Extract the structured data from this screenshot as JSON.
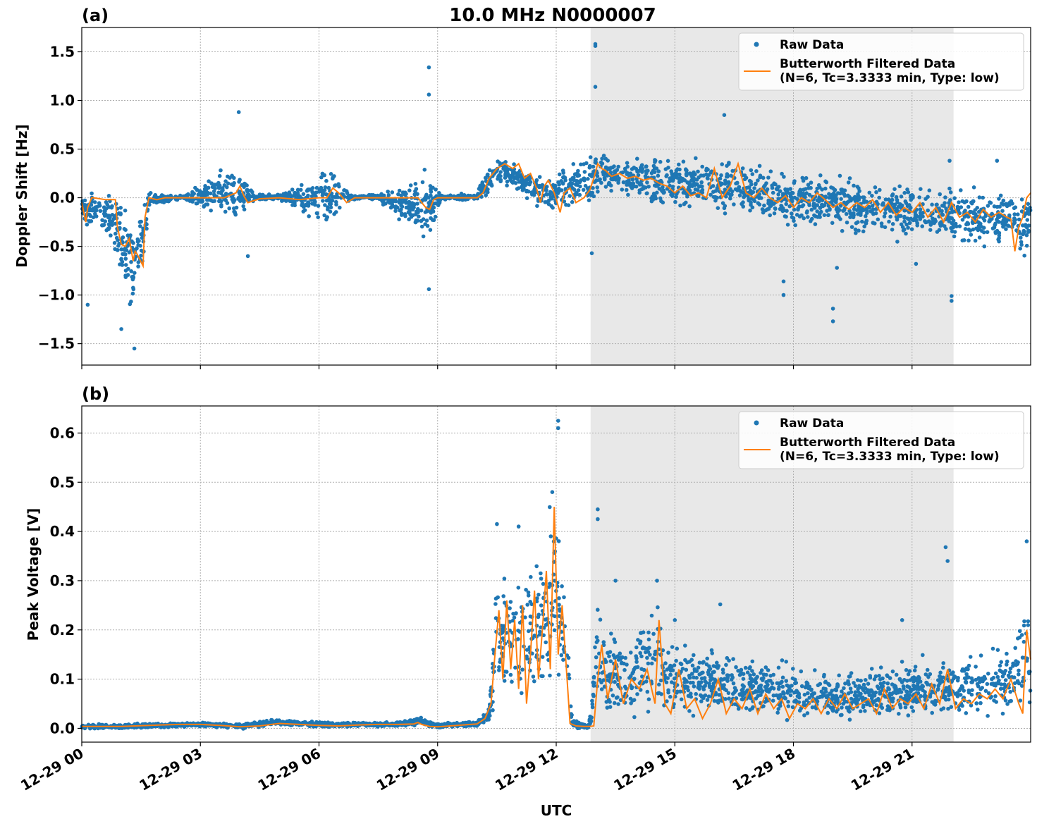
{
  "figure": {
    "title": "10.0 MHz N0000007",
    "xlabel": "UTC",
    "xtick_labels": [
      "12-29 00",
      "12-29 03",
      "12-29 06",
      "12-29 09",
      "12-29 12",
      "12-29 15",
      "12-29 18",
      "12-29 21"
    ],
    "shaded_interval_hours": [
      12.87,
      22.05
    ],
    "shade_color": "#e8e8e8",
    "raw_color": "#1f77b4",
    "filtered_color": "#ff7f0e"
  },
  "chart_data": [
    {
      "type": "scatter",
      "panel_label": "(a)",
      "ylabel": "Doppler Shift [Hz]",
      "xlim_hours": [
        0,
        24
      ],
      "ylim": [
        -1.72,
        1.75
      ],
      "yticks": [
        1.5,
        1.0,
        0.5,
        0.0,
        -0.5,
        -1.0,
        -1.5
      ],
      "ytick_labels": [
        "1.5",
        "1.0",
        "0.5",
        "0.0",
        "−0.5",
        "−1.0",
        "−1.5"
      ],
      "grid": true,
      "legend": "top-right",
      "series": [
        {
          "name": "Raw Data",
          "kind": "points",
          "envelope": {
            "x_hours": [
              0,
              0.8,
              1.0,
              1.3,
              1.6,
              1.7,
              2.5,
              3.9,
              4.1,
              4.4,
              5.0,
              6.2,
              6.4,
              6.8,
              7.5,
              8.6,
              8.8,
              9.1,
              10.0,
              10.2,
              10.6,
              11.0,
              11.4,
              11.8,
              12.2,
              12.6,
              12.9,
              13.1,
              13.5,
              14.0,
              15.0,
              16.0,
              17.0,
              18.0,
              19.0,
              20.0,
              21.0,
              22.0,
              23.0,
              23.5,
              23.8,
              24.0
            ],
            "upper": [
              0.1,
              0.1,
              0.05,
              0.0,
              0.05,
              0.06,
              0.04,
              0.4,
              0.3,
              0.04,
              0.04,
              0.4,
              0.35,
              0.04,
              0.04,
              0.3,
              0.3,
              0.04,
              0.05,
              0.3,
              0.45,
              0.4,
              0.3,
              0.3,
              0.35,
              0.45,
              0.65,
              0.55,
              0.45,
              0.45,
              0.45,
              0.45,
              0.4,
              0.3,
              0.3,
              0.25,
              0.2,
              0.15,
              0.15,
              0.1,
              0.1,
              0.1
            ],
            "lower": [
              -0.3,
              -0.5,
              -1.0,
              -1.3,
              -0.9,
              -0.1,
              -0.03,
              -0.3,
              -0.2,
              -0.03,
              -0.03,
              -0.4,
              -0.3,
              -0.03,
              -0.03,
              -0.5,
              -0.5,
              -0.03,
              -0.04,
              0.0,
              0.1,
              0.0,
              -0.1,
              -0.2,
              -0.2,
              -0.1,
              -0.2,
              0.0,
              0.0,
              -0.1,
              -0.15,
              -0.2,
              -0.25,
              -0.4,
              -0.4,
              -0.45,
              -0.5,
              -0.5,
              -0.55,
              -0.5,
              -0.8,
              -0.3
            ]
          },
          "outliers": [
            {
              "x_hours": 12.99,
              "y": 1.58
            },
            {
              "x_hours": 12.99,
              "y": 1.56
            },
            {
              "x_hours": 8.78,
              "y": 1.34
            },
            {
              "x_hours": 8.78,
              "y": 1.06
            },
            {
              "x_hours": 12.99,
              "y": 1.14
            },
            {
              "x_hours": 3.97,
              "y": 0.88
            },
            {
              "x_hours": 16.25,
              "y": 0.85
            },
            {
              "x_hours": 21.95,
              "y": 0.38
            },
            {
              "x_hours": 23.15,
              "y": 0.38
            },
            {
              "x_hours": 1.33,
              "y": -1.55
            },
            {
              "x_hours": 1.0,
              "y": -1.35
            },
            {
              "x_hours": 0.15,
              "y": -1.1
            },
            {
              "x_hours": 8.78,
              "y": -0.94
            },
            {
              "x_hours": 17.75,
              "y": -1.0
            },
            {
              "x_hours": 17.75,
              "y": -0.86
            },
            {
              "x_hours": 19.0,
              "y": -1.14
            },
            {
              "x_hours": 19.0,
              "y": -1.27
            },
            {
              "x_hours": 22.0,
              "y": -1.06
            },
            {
              "x_hours": 22.0,
              "y": -1.01
            },
            {
              "x_hours": 12.9,
              "y": -0.57
            },
            {
              "x_hours": 19.1,
              "y": -0.72
            },
            {
              "x_hours": 21.1,
              "y": -0.68
            },
            {
              "x_hours": 4.2,
              "y": -0.6
            }
          ]
        },
        {
          "name": "Butterworth Filtered Data\n(N=6, Tc=3.3333 min, Type: low)",
          "kind": "line",
          "x_hours": [
            0.0,
            0.1,
            0.15,
            0.25,
            0.3,
            0.6,
            0.85,
            0.9,
            1.0,
            1.1,
            1.2,
            1.3,
            1.35,
            1.4,
            1.55,
            1.6,
            1.7,
            1.9,
            2.1,
            2.4,
            2.8,
            3.2,
            3.6,
            3.9,
            4.0,
            4.1,
            4.2,
            4.5,
            5.0,
            5.5,
            6.0,
            6.2,
            6.35,
            6.5,
            6.7,
            6.9,
            7.5,
            8.0,
            8.5,
            8.7,
            8.8,
            8.9,
            9.0,
            9.5,
            10.0,
            10.15,
            10.3,
            10.5,
            10.7,
            10.9,
            11.05,
            11.2,
            11.35,
            11.5,
            11.6,
            11.7,
            11.8,
            11.95,
            12.1,
            12.2,
            12.35,
            12.5,
            12.7,
            12.85,
            12.95,
            13.05,
            13.15,
            13.25,
            13.4,
            13.6,
            13.8,
            14.0,
            14.2,
            14.4,
            14.6,
            14.8,
            15.0,
            15.2,
            15.4,
            15.6,
            15.8,
            16.0,
            16.2,
            16.4,
            16.6,
            16.8,
            17.0,
            17.2,
            17.4,
            17.6,
            17.8,
            18.0,
            18.2,
            18.4,
            18.6,
            18.8,
            19.0,
            19.2,
            19.4,
            19.6,
            19.8,
            20.0,
            20.2,
            20.4,
            20.6,
            20.8,
            21.0,
            21.2,
            21.4,
            21.6,
            21.8,
            22.0,
            22.2,
            22.4,
            22.6,
            22.8,
            23.0,
            23.2,
            23.4,
            23.5,
            23.6,
            23.7,
            23.8,
            23.9,
            24.0
          ],
          "y": [
            -0.05,
            -0.25,
            -0.1,
            0.0,
            0.0,
            -0.02,
            -0.02,
            -0.3,
            -0.48,
            -0.5,
            -0.42,
            -0.65,
            -0.55,
            -0.58,
            -0.7,
            -0.2,
            0.0,
            -0.02,
            0.0,
            0.0,
            0.0,
            0.0,
            0.0,
            0.05,
            0.12,
            0.02,
            -0.05,
            -0.01,
            0.0,
            -0.02,
            0.0,
            0.0,
            0.1,
            0.05,
            -0.05,
            0.0,
            0.0,
            0.0,
            0.0,
            -0.1,
            -0.12,
            -0.02,
            0.0,
            0.0,
            0.0,
            0.05,
            0.2,
            0.3,
            0.35,
            0.3,
            0.35,
            0.2,
            0.25,
            0.1,
            -0.05,
            0.12,
            0.18,
            0.05,
            -0.15,
            0.05,
            0.1,
            -0.05,
            0.0,
            0.08,
            0.2,
            0.35,
            0.3,
            0.28,
            0.22,
            0.25,
            0.2,
            0.22,
            0.18,
            0.2,
            0.15,
            0.12,
            0.05,
            0.12,
            0.02,
            0.05,
            0.0,
            0.3,
            0.0,
            0.12,
            0.35,
            0.05,
            0.0,
            0.1,
            0.0,
            -0.05,
            0.02,
            -0.1,
            0.0,
            -0.05,
            0.05,
            -0.02,
            -0.1,
            -0.05,
            -0.12,
            -0.05,
            -0.1,
            -0.02,
            -0.15,
            -0.05,
            -0.18,
            -0.1,
            -0.15,
            -0.05,
            -0.2,
            -0.1,
            -0.25,
            -0.05,
            -0.2,
            -0.15,
            -0.25,
            -0.12,
            -0.2,
            -0.15,
            -0.2,
            -0.22,
            -0.55,
            -0.3,
            -0.2,
            0.0,
            0.05
          ]
        }
      ]
    },
    {
      "type": "scatter",
      "panel_label": "(b)",
      "ylabel": "Peak Voltage [V]",
      "xlim_hours": [
        0,
        24
      ],
      "ylim": [
        -0.028,
        0.655
      ],
      "yticks": [
        0.6,
        0.5,
        0.4,
        0.3,
        0.2,
        0.1,
        0.0
      ],
      "ytick_labels": [
        "0.6",
        "0.5",
        "0.4",
        "0.3",
        "0.2",
        "0.1",
        "0.0"
      ],
      "grid": true,
      "legend": "top-right",
      "series": [
        {
          "name": "Raw Data",
          "kind": "points",
          "envelope": {
            "x_hours": [
              0,
              1.0,
              2.0,
              3.0,
              4.0,
              5.0,
              6.0,
              7.0,
              8.0,
              8.5,
              9.0,
              10.0,
              10.3,
              10.5,
              10.8,
              11.2,
              11.6,
              11.9,
              12.0,
              12.2,
              12.4,
              12.6,
              12.8,
              12.9,
              13.0,
              13.2,
              13.5,
              14.0,
              14.5,
              15.0,
              16.0,
              17.0,
              18.0,
              19.0,
              20.0,
              21.0,
              22.0,
              23.0,
              23.5,
              23.9,
              24.0
            ],
            "upper": [
              0.01,
              0.01,
              0.012,
              0.013,
              0.01,
              0.02,
              0.015,
              0.013,
              0.014,
              0.025,
              0.012,
              0.015,
              0.05,
              0.38,
              0.35,
              0.35,
              0.4,
              0.55,
              0.58,
              0.35,
              0.02,
              0.015,
              0.01,
              0.05,
              0.3,
              0.22,
              0.22,
              0.22,
              0.28,
              0.2,
              0.18,
              0.15,
              0.14,
              0.12,
              0.13,
              0.15,
              0.16,
              0.17,
              0.18,
              0.3,
              0.2
            ],
            "lower": [
              -0.002,
              -0.002,
              0.0,
              0.003,
              -0.002,
              0.005,
              0.0,
              0.002,
              0.003,
              0.005,
              0.0,
              0.003,
              0.01,
              0.03,
              0.02,
              0.03,
              0.03,
              0.03,
              0.05,
              0.02,
              0.0,
              -0.002,
              -0.002,
              0.0,
              0.01,
              0.01,
              0.01,
              0.01,
              0.005,
              0.005,
              0.005,
              0.005,
              0.005,
              0.005,
              0.005,
              0.005,
              0.005,
              0.01,
              0.01,
              0.02,
              0.03
            ]
          },
          "outliers": [
            {
              "x_hours": 12.05,
              "y": 0.625
            },
            {
              "x_hours": 12.05,
              "y": 0.61
            },
            {
              "x_hours": 11.9,
              "y": 0.48
            },
            {
              "x_hours": 13.05,
              "y": 0.445
            },
            {
              "x_hours": 13.05,
              "y": 0.425
            },
            {
              "x_hours": 10.5,
              "y": 0.415
            },
            {
              "x_hours": 11.05,
              "y": 0.41
            },
            {
              "x_hours": 21.85,
              "y": 0.368
            },
            {
              "x_hours": 21.9,
              "y": 0.34
            },
            {
              "x_hours": 23.9,
              "y": 0.38
            },
            {
              "x_hours": 13.5,
              "y": 0.3
            },
            {
              "x_hours": 14.55,
              "y": 0.3
            },
            {
              "x_hours": 16.15,
              "y": 0.252
            },
            {
              "x_hours": 20.75,
              "y": 0.22
            },
            {
              "x_hours": 15.0,
              "y": 0.22
            }
          ]
        },
        {
          "name": "Butterworth Filtered Data\n(N=6, Tc=3.3333 min, Type: low)",
          "kind": "line",
          "x_hours": [
            0.0,
            1.0,
            2.0,
            2.5,
            3.0,
            3.5,
            4.0,
            4.5,
            5.0,
            5.5,
            6.0,
            6.5,
            7.0,
            7.5,
            8.0,
            8.4,
            8.5,
            8.6,
            8.8,
            9.0,
            9.5,
            10.0,
            10.2,
            10.35,
            10.45,
            10.55,
            10.65,
            10.75,
            10.85,
            10.95,
            11.05,
            11.15,
            11.25,
            11.35,
            11.45,
            11.55,
            11.65,
            11.75,
            11.85,
            11.95,
            12.05,
            12.15,
            12.25,
            12.35,
            12.5,
            12.7,
            12.85,
            12.95,
            13.05,
            13.15,
            13.3,
            13.5,
            13.7,
            13.9,
            14.1,
            14.3,
            14.5,
            14.6,
            14.75,
            14.9,
            15.1,
            15.3,
            15.5,
            15.7,
            15.9,
            16.1,
            16.3,
            16.5,
            16.7,
            16.9,
            17.1,
            17.3,
            17.5,
            17.7,
            17.9,
            18.1,
            18.3,
            18.5,
            18.7,
            18.9,
            19.1,
            19.3,
            19.5,
            19.7,
            19.9,
            20.1,
            20.3,
            20.5,
            20.7,
            20.9,
            21.1,
            21.3,
            21.5,
            21.7,
            21.9,
            22.1,
            22.3,
            22.5,
            22.7,
            22.9,
            23.1,
            23.3,
            23.5,
            23.7,
            23.8,
            23.9,
            24.0
          ],
          "y": [
            0.004,
            0.004,
            0.007,
            0.008,
            0.008,
            0.006,
            0.003,
            0.005,
            0.01,
            0.008,
            0.006,
            0.005,
            0.007,
            0.008,
            0.008,
            0.009,
            0.012,
            0.008,
            0.004,
            0.003,
            0.006,
            0.009,
            0.02,
            0.05,
            0.15,
            0.24,
            0.1,
            0.26,
            0.12,
            0.22,
            0.08,
            0.25,
            0.05,
            0.15,
            0.28,
            0.1,
            0.2,
            0.32,
            0.12,
            0.45,
            0.15,
            0.25,
            0.13,
            0.01,
            0.005,
            0.004,
            0.004,
            0.005,
            0.1,
            0.17,
            0.06,
            0.14,
            0.05,
            0.1,
            0.08,
            0.12,
            0.05,
            0.22,
            0.05,
            0.03,
            0.12,
            0.04,
            0.06,
            0.02,
            0.05,
            0.1,
            0.03,
            0.06,
            0.04,
            0.08,
            0.03,
            0.07,
            0.04,
            0.06,
            0.02,
            0.05,
            0.04,
            0.06,
            0.03,
            0.06,
            0.04,
            0.07,
            0.04,
            0.05,
            0.06,
            0.03,
            0.08,
            0.04,
            0.06,
            0.05,
            0.07,
            0.04,
            0.09,
            0.05,
            0.12,
            0.04,
            0.06,
            0.05,
            0.07,
            0.06,
            0.08,
            0.06,
            0.1,
            0.05,
            0.03,
            0.2,
            0.14
          ]
        }
      ]
    }
  ]
}
